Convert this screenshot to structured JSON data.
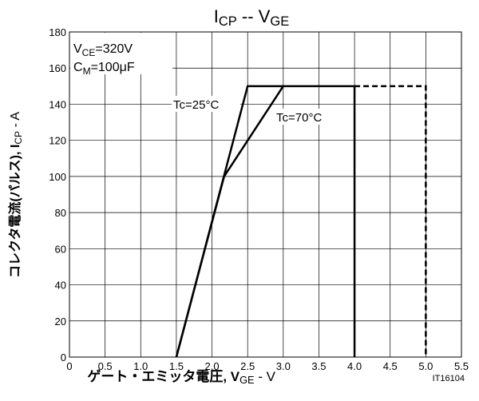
{
  "chart_data": {
    "type": "line",
    "title": [
      "I",
      "CP",
      " -- V",
      "GE"
    ],
    "x_label": [
      "ゲート・エミッタ電圧, V",
      "GE",
      " - V"
    ],
    "y_label": [
      "コレクタ電流(パルス), I",
      "CP",
      " - A"
    ],
    "annotations": [
      [
        "V",
        "CE",
        "=320V"
      ],
      [
        "C",
        "M",
        "=100μF"
      ],
      "IT16104"
    ],
    "series": [
      {
        "name": "Tc=25°C",
        "color": "#000000",
        "x": [
          1.5,
          2.5,
          4.0,
          4.0
        ],
        "values": [
          0,
          150,
          150,
          0
        ]
      },
      {
        "name": "Tc=70°C",
        "color": "#000000",
        "x": [
          1.5,
          2.17,
          3.0
        ],
        "values": [
          0,
          100,
          150
        ]
      },
      {
        "color": "#000000",
        "dashed": true,
        "x": [
          4.0,
          5.0,
          5.0
        ],
        "values": [
          150,
          150,
          0
        ]
      }
    ],
    "xlim": [
      0,
      5.5
    ],
    "xticks": [
      0,
      0.5,
      {
        "value": 1,
        "label": "1.0"
      },
      1.5,
      {
        "value": 2,
        "label": "2.0"
      },
      2.5,
      {
        "value": 3,
        "label": "3.0"
      },
      3.5,
      {
        "value": 4,
        "label": "4.0"
      },
      4.5,
      {
        "value": 5,
        "label": "5.0"
      },
      5.5
    ],
    "ylim": [
      0,
      180
    ],
    "yticks": [
      0,
      20,
      40,
      60,
      80,
      100,
      120,
      140,
      160,
      180
    ],
    "grid": true
  }
}
